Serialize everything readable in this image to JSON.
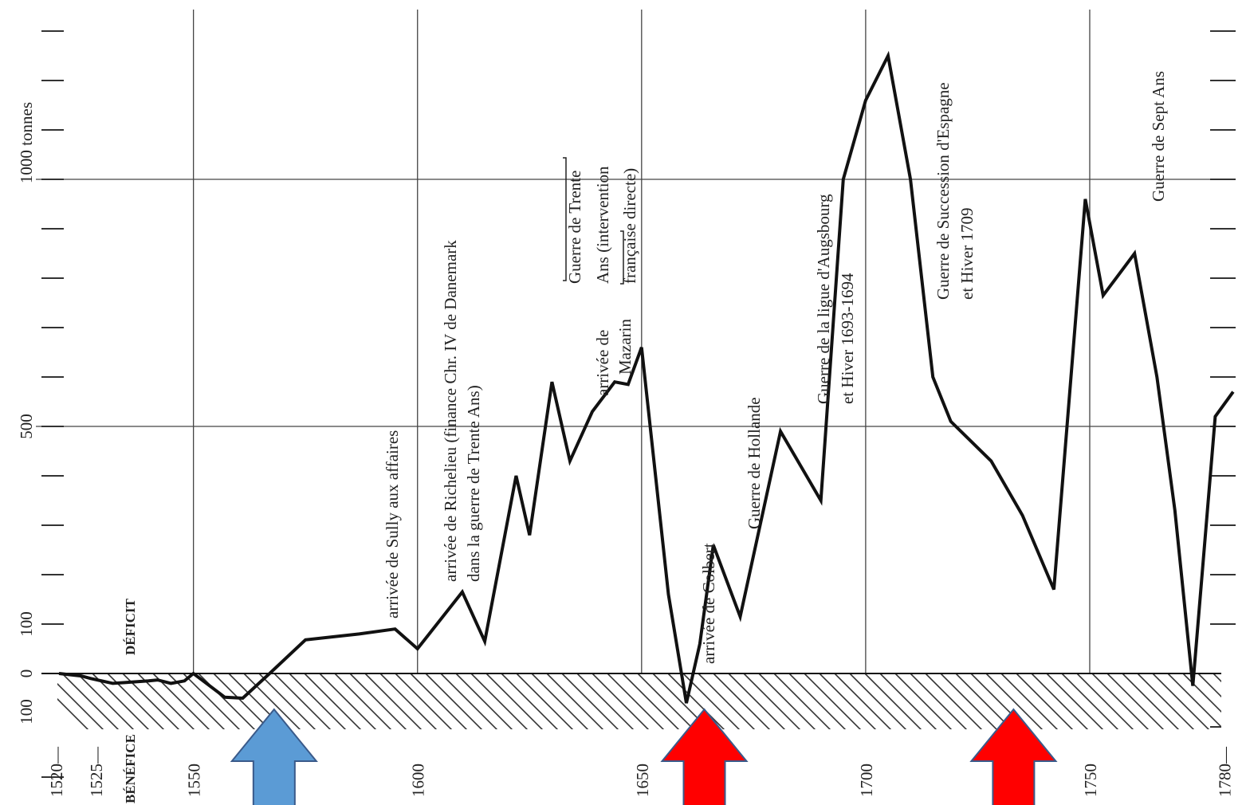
{
  "chart_data": {
    "type": "line",
    "orientation": "rotated-90-ccw",
    "x_unit": "year",
    "y_unit_label": "1000 tonnes",
    "x_ticks": [
      {
        "value": 1520,
        "label": "1520—"
      },
      {
        "value": 1525,
        "label": "1525—"
      },
      {
        "value": 1550,
        "label": "1550"
      },
      {
        "value": 1600,
        "label": "1600"
      },
      {
        "value": 1650,
        "label": "1650"
      },
      {
        "value": 1700,
        "label": "1700"
      },
      {
        "value": 1750,
        "label": "1750"
      },
      {
        "value": 1780,
        "label": "1780—"
      }
    ],
    "y_ticks": [
      {
        "value": -100,
        "label": "100"
      },
      {
        "value": 0,
        "label": "0"
      },
      {
        "value": 100,
        "label": "100"
      },
      {
        "value": 500,
        "label": "500"
      }
    ],
    "y_range": [
      -130,
      1330
    ],
    "x_range": [
      1520,
      1785
    ],
    "minor_y_step": 100,
    "gridlines_x": [
      1550,
      1600,
      1650,
      1700,
      1750
    ],
    "gridlines_y": [
      500,
      1000
    ],
    "zone_labels": {
      "benefice": "BÉNÉFICE",
      "deficit": "DÉFICIT"
    },
    "series": [
      {
        "x": [
          1520,
          1525,
          1527,
          1532,
          1535,
          1540,
          1542,
          1545,
          1548,
          1550,
          1557,
          1561,
          1567,
          1575,
          1587,
          1595,
          1600,
          1610,
          1615,
          1622,
          1625,
          1630,
          1634,
          1639,
          1644,
          1647,
          1650,
          1656,
          1660,
          1663,
          1666,
          1672,
          1681,
          1690,
          1695,
          1700,
          1705,
          1710,
          1715,
          1719,
          1728,
          1735,
          1742,
          1749,
          1753,
          1760,
          1765,
          1769,
          1773,
          1778,
          1782
        ],
        "y": [
          0,
          -5,
          -10,
          -20,
          -18,
          -15,
          -13,
          -20,
          -15,
          0,
          -48,
          -50,
          0,
          68,
          80,
          90,
          50,
          165,
          65,
          400,
          280,
          590,
          430,
          530,
          590,
          585,
          660,
          160,
          -60,
          60,
          260,
          115,
          490,
          350,
          1000,
          1160,
          1250,
          1000,
          600,
          510,
          430,
          320,
          170,
          960,
          765,
          850,
          600,
          330,
          -25,
          520,
          570
        ]
      }
    ],
    "annotations": [
      {
        "text": "arrivée de Sully aux affaires"
      },
      {
        "text": "arrivée de Richelieu (finance Chr. IV de Danemark"
      },
      {
        "text": "dans la guerre de Trente Ans)"
      },
      {
        "text": "arrivée de"
      },
      {
        "text": "Mazarin"
      },
      {
        "text": "Guerre de Trente"
      },
      {
        "text": "Ans (intervention"
      },
      {
        "text": "française directe)"
      },
      {
        "text": "arrivée de Colbert"
      },
      {
        "text": "Guerre de Hollande"
      },
      {
        "text": "Guerre de la ligue d'Augsbourg"
      },
      {
        "text": "et Hiver 1693-1694"
      },
      {
        "text": "Guerre de Succession d'Espagne"
      },
      {
        "text": "et Hiver 1709"
      },
      {
        "text": "Guerre de Sept Ans"
      }
    ],
    "arrows": [
      {
        "color": "#5b9bd5",
        "year": 1568
      },
      {
        "color": "#ff0000",
        "year": 1664
      },
      {
        "color": "#ff0000",
        "year": 1733
      }
    ]
  }
}
